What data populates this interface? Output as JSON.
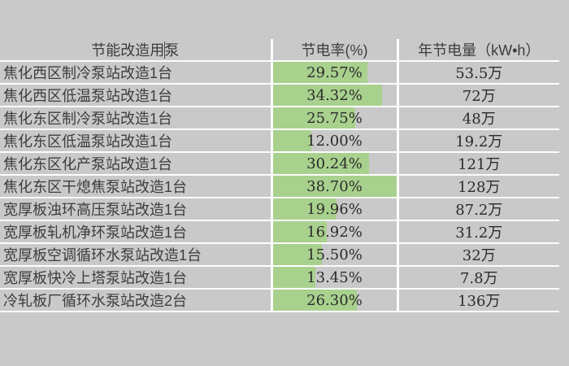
{
  "colors": {
    "background": "#c9c9c9",
    "gridline": "#fdfdfd",
    "bar_green": "#a9d18e",
    "label_text": "#3d3d3d",
    "number_text": "#2b2b2b"
  },
  "table": {
    "headers": {
      "pump": "节能改造用泵",
      "rate": "节电率(%)",
      "annual": "年节电量（kW•h）"
    },
    "bar_max": 38.7,
    "rows": [
      {
        "pump": "焦化西区制冷泵站改造1台",
        "rate": "29.57%",
        "rate_value": 29.57,
        "annual": "53.5万"
      },
      {
        "pump": "焦化西区低温泵站改造1台",
        "rate": "34.32%",
        "rate_value": 34.32,
        "annual": "72万"
      },
      {
        "pump": "焦化东区制冷泵站改造1台",
        "rate": "25.75%",
        "rate_value": 25.75,
        "annual": "48万"
      },
      {
        "pump": "焦化东区低温泵站改造1台",
        "rate": "12.00%",
        "rate_value": 12.0,
        "annual": "19.2万"
      },
      {
        "pump": "焦化东区化产泵站改造1台",
        "rate": "30.24%",
        "rate_value": 30.24,
        "annual": "121万"
      },
      {
        "pump": "焦化东区干熄焦泵站改造1台",
        "rate": "38.70%",
        "rate_value": 38.7,
        "annual": "128万"
      },
      {
        "pump": "宽厚板浊环高压泵站改造1台",
        "rate": "19.96%",
        "rate_value": 19.96,
        "annual": "87.2万"
      },
      {
        "pump": "宽厚板轧机净环泵站改造1台",
        "rate": "16.92%",
        "rate_value": 16.92,
        "annual": "31.2万"
      },
      {
        "pump": "宽厚板空调循环水泵站改造1台",
        "rate": "15.50%",
        "rate_value": 15.5,
        "annual": "32万"
      },
      {
        "pump": "宽厚板快冷上塔泵站改造1台",
        "rate": "13.45%",
        "rate_value": 13.45,
        "annual": "7.8万"
      },
      {
        "pump": "冷轧板厂循环水泵站改造2台",
        "rate": "26.30%",
        "rate_value": 26.3,
        "annual": "136万"
      }
    ]
  },
  "chart_data": {
    "type": "table",
    "title": "",
    "columns": [
      "节能改造用泵",
      "节电率(%)",
      "年节电量（kW•h）"
    ],
    "categories": [
      "焦化西区制冷泵站改造1台",
      "焦化西区低温泵站改造1台",
      "焦化东区制冷泵站改造1台",
      "焦化东区低温泵站改造1台",
      "焦化东区化产泵站改造1台",
      "焦化东区干熄焦泵站改造1台",
      "宽厚板浊环高压泵站改造1台",
      "宽厚板轧机净环泵站改造1台",
      "宽厚板空调循环水泵站改造1台",
      "宽厚板快冷上塔泵站改造1台",
      "冷轧板厂循环水泵站改造2台"
    ],
    "series": [
      {
        "name": "节电率(%)",
        "values": [
          29.57,
          34.32,
          25.75,
          12.0,
          30.24,
          38.7,
          19.96,
          16.92,
          15.5,
          13.45,
          26.3
        ]
      },
      {
        "name": "年节电量(万kW•h)",
        "values": [
          53.5,
          72,
          48,
          19.2,
          121,
          128,
          87.2,
          31.2,
          32,
          7.8,
          136
        ]
      }
    ],
    "data_bars": {
      "column": "节电率(%)",
      "color": "#a9d18e",
      "scale_max": 38.7
    },
    "layout": {
      "gridlines": "white",
      "cell_background": "#c9c9c9",
      "bar_fill_relative_to_max": true
    }
  }
}
